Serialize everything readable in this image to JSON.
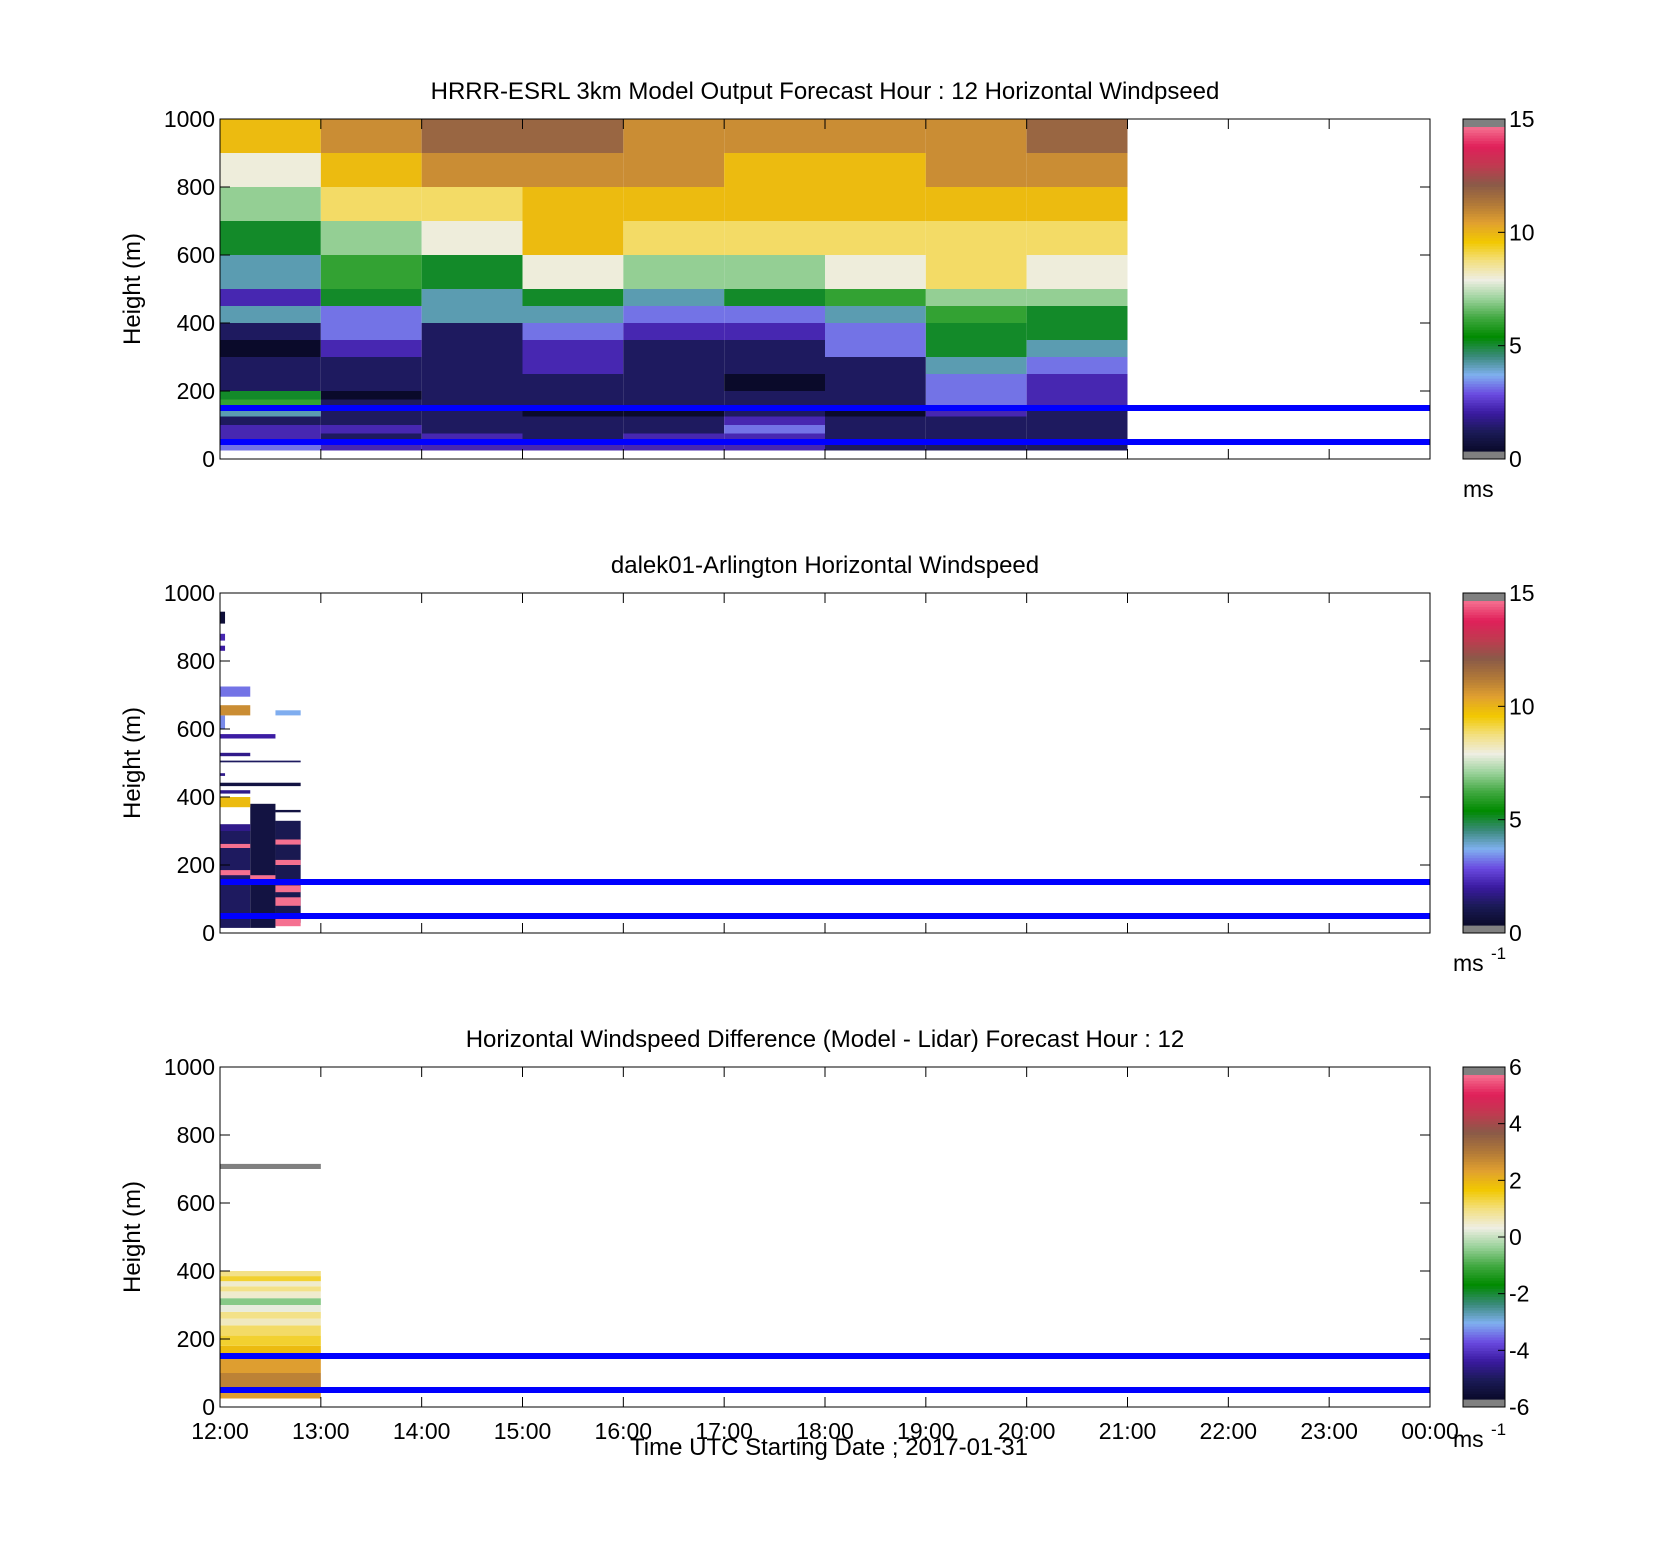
{
  "figure": {
    "xlabel": "Time UTC  Starting Date ; 2017-01-31",
    "x_ticks": [
      "12:00",
      "13:00",
      "14:00",
      "15:00",
      "16:00",
      "17:00",
      "18:00",
      "19:00",
      "20:00",
      "21:00",
      "22:00",
      "23:00",
      "00:00"
    ]
  },
  "chart_data": [
    {
      "type": "heatmap",
      "title": "HRRR-ESRL 3km Model Output   Forecast Hour : 12 Horizontal Windpseed",
      "ylabel": "Height (m)",
      "ylim": [
        0,
        1000
      ],
      "y_ticks": [
        "0",
        "200",
        "400",
        "600",
        "800",
        "1000"
      ],
      "colorbar": {
        "min": 0,
        "max": 15,
        "ticks": [
          "0",
          "5",
          "10",
          "15"
        ],
        "unit": "ms",
        "unit_sup": ""
      },
      "reference_lines_m": [
        50,
        150
      ],
      "reference_line_color": "#0000ff",
      "x_hours": [
        12,
        13,
        14,
        15,
        16,
        17,
        18,
        19,
        20
      ],
      "level_bounds_m": [
        0,
        25,
        50,
        75,
        100,
        125,
        150,
        175,
        200,
        250,
        300,
        350,
        400,
        450,
        500,
        600,
        700,
        800,
        900,
        1000
      ],
      "columns": [
        [
          0,
          3,
          2,
          2,
          1,
          4,
          6,
          5,
          1,
          1,
          0,
          1,
          4,
          2,
          4,
          5,
          7,
          8,
          10
        ],
        [
          0,
          2,
          1,
          2,
          1,
          1,
          1,
          0,
          1,
          1,
          2,
          3,
          3,
          5,
          6,
          7,
          9,
          10,
          11
        ],
        [
          0,
          2,
          2,
          1,
          1,
          1,
          1,
          1,
          1,
          1,
          1,
          1,
          4,
          4,
          5,
          8,
          9,
          11,
          12
        ],
        [
          0,
          2,
          1,
          1,
          1,
          0,
          1,
          1,
          1,
          2,
          2,
          3,
          4,
          5,
          8,
          10,
          10,
          11,
          12
        ],
        [
          0,
          2,
          2,
          1,
          1,
          0,
          1,
          1,
          1,
          1,
          1,
          2,
          3,
          4,
          7,
          9,
          10,
          11,
          11
        ],
        [
          0,
          2,
          2,
          3,
          2,
          1,
          1,
          1,
          0,
          1,
          1,
          2,
          3,
          5,
          7,
          9,
          10,
          10,
          11
        ],
        [
          0,
          1,
          1,
          1,
          1,
          0,
          1,
          1,
          1,
          1,
          3,
          3,
          4,
          6,
          8,
          9,
          10,
          10,
          11
        ],
        [
          0,
          1,
          1,
          1,
          1,
          2,
          3,
          3,
          3,
          4,
          5,
          5,
          6,
          7,
          9,
          9,
          10,
          11,
          11
        ],
        [
          0,
          1,
          1,
          1,
          1,
          1,
          2,
          2,
          2,
          3,
          4,
          5,
          5,
          7,
          8,
          9,
          10,
          11,
          12
        ]
      ],
      "missing_level_index": 0
    },
    {
      "type": "heatmap",
      "title": "dalek01-Arlington  Horizontal Windspeed",
      "ylabel": "Height (m)",
      "ylim": [
        0,
        1000
      ],
      "y_ticks": [
        "0",
        "200",
        "400",
        "600",
        "800",
        "1000"
      ],
      "colorbar": {
        "min": 0,
        "max": 15,
        "ticks": [
          "0",
          "5",
          "10",
          "15"
        ],
        "unit": "ms",
        "unit_sup": "-1"
      },
      "reference_lines_m": [
        50,
        150
      ],
      "reference_line_color": "#0000ff",
      "cells": [
        {
          "x0": 12.0,
          "x1": 12.3,
          "y0": 15,
          "y1": 300,
          "v": 1.0
        },
        {
          "x0": 12.3,
          "x1": 12.55,
          "y0": 15,
          "y1": 380,
          "v": 0.5
        },
        {
          "x0": 12.55,
          "x1": 12.8,
          "y0": 30,
          "y1": 330,
          "v": 0.8
        },
        {
          "x0": 12.0,
          "x1": 12.3,
          "y0": 170,
          "y1": 185,
          "v": 15
        },
        {
          "x0": 12.0,
          "x1": 12.3,
          "y0": 250,
          "y1": 262,
          "v": 15
        },
        {
          "x0": 12.3,
          "x1": 12.55,
          "y0": 150,
          "y1": 170,
          "v": 15
        },
        {
          "x0": 12.55,
          "x1": 12.8,
          "y0": 80,
          "y1": 105,
          "v": 15
        },
        {
          "x0": 12.55,
          "x1": 12.8,
          "y0": 20,
          "y1": 45,
          "v": 15
        },
        {
          "x0": 12.55,
          "x1": 12.8,
          "y0": 120,
          "y1": 140,
          "v": 15
        },
        {
          "x0": 12.55,
          "x1": 12.8,
          "y0": 200,
          "y1": 215,
          "v": 15
        },
        {
          "x0": 12.55,
          "x1": 12.8,
          "y0": 260,
          "y1": 275,
          "v": 15
        },
        {
          "x0": 12.0,
          "x1": 12.3,
          "y0": 370,
          "y1": 400,
          "v": 10
        },
        {
          "x0": 12.0,
          "x1": 12.3,
          "y0": 300,
          "y1": 320,
          "v": 1.5
        },
        {
          "x0": 12.0,
          "x1": 12.8,
          "y0": 432,
          "y1": 442,
          "v": 0.5
        },
        {
          "x0": 12.0,
          "x1": 12.3,
          "y0": 410,
          "y1": 420,
          "v": 1.5
        },
        {
          "x0": 12.55,
          "x1": 12.8,
          "y0": 355,
          "y1": 362,
          "v": 0.5
        },
        {
          "x0": 12.0,
          "x1": 12.8,
          "y0": 502,
          "y1": 507,
          "v": 1.0
        },
        {
          "x0": 12.0,
          "x1": 12.55,
          "y0": 572,
          "y1": 585,
          "v": 1.8
        },
        {
          "x0": 12.0,
          "x1": 12.3,
          "y0": 520,
          "y1": 530,
          "v": 1.5
        },
        {
          "x0": 12.0,
          "x1": 12.05,
          "y0": 462,
          "y1": 470,
          "v": 1.5
        },
        {
          "x0": 12.0,
          "x1": 12.05,
          "y0": 600,
          "y1": 640,
          "v": 3.2
        },
        {
          "x0": 12.0,
          "x1": 12.3,
          "y0": 695,
          "y1": 725,
          "v": 3.0
        },
        {
          "x0": 12.0,
          "x1": 12.3,
          "y0": 640,
          "y1": 670,
          "v": 11
        },
        {
          "x0": 12.55,
          "x1": 12.8,
          "y0": 640,
          "y1": 655,
          "v": 3.5
        },
        {
          "x0": 12.0,
          "x1": 12.05,
          "y0": 860,
          "y1": 880,
          "v": 2.0
        },
        {
          "x0": 12.0,
          "x1": 12.05,
          "y0": 910,
          "y1": 945,
          "v": 0.3
        },
        {
          "x0": 12.0,
          "x1": 12.05,
          "y0": 830,
          "y1": 845,
          "v": 1.8
        }
      ]
    },
    {
      "type": "heatmap",
      "title": "Horizontal Windspeed Difference (Model - Lidar) Forecast Hour : 12",
      "ylabel": "Height (m)",
      "ylim": [
        0,
        1000
      ],
      "y_ticks": [
        "0",
        "200",
        "400",
        "600",
        "800",
        "1000"
      ],
      "colorbar": {
        "min": -6,
        "max": 6,
        "ticks": [
          "-6",
          "-4",
          "-2",
          "0",
          "2",
          "4",
          "6"
        ],
        "unit": "ms",
        "unit_sup": "-1"
      },
      "reference_lines_m": [
        50,
        150
      ],
      "reference_line_color": "#0000ff",
      "cells": [
        {
          "x0": 12.0,
          "x1": 13.0,
          "y0": 700,
          "y1": 715,
          "v": 6.5
        },
        {
          "x0": 12.0,
          "x1": 13.0,
          "y0": 25,
          "y1": 50,
          "v": 2.5
        },
        {
          "x0": 12.0,
          "x1": 13.0,
          "y0": 50,
          "y1": 100,
          "v": 3.0
        },
        {
          "x0": 12.0,
          "x1": 13.0,
          "y0": 100,
          "y1": 150,
          "v": 2.5
        },
        {
          "x0": 12.0,
          "x1": 13.0,
          "y0": 150,
          "y1": 180,
          "v": 2.0
        },
        {
          "x0": 12.0,
          "x1": 13.0,
          "y0": 180,
          "y1": 210,
          "v": 1.5
        },
        {
          "x0": 12.0,
          "x1": 13.0,
          "y0": 210,
          "y1": 240,
          "v": 1.2
        },
        {
          "x0": 12.0,
          "x1": 13.0,
          "y0": 240,
          "y1": 260,
          "v": 0.6
        },
        {
          "x0": 12.0,
          "x1": 13.0,
          "y0": 260,
          "y1": 280,
          "v": 1.0
        },
        {
          "x0": 12.0,
          "x1": 13.0,
          "y0": 280,
          "y1": 300,
          "v": 0.3
        },
        {
          "x0": 12.0,
          "x1": 13.0,
          "y0": 300,
          "y1": 320,
          "v": -0.5
        },
        {
          "x0": 12.0,
          "x1": 13.0,
          "y0": 320,
          "y1": 340,
          "v": 0.5
        },
        {
          "x0": 12.0,
          "x1": 13.0,
          "y0": 340,
          "y1": 355,
          "v": 1.0
        },
        {
          "x0": 12.0,
          "x1": 13.0,
          "y0": 355,
          "y1": 370,
          "v": 0.5
        },
        {
          "x0": 12.0,
          "x1": 13.0,
          "y0": 370,
          "y1": 385,
          "v": 1.5
        },
        {
          "x0": 12.0,
          "x1": 13.0,
          "y0": 385,
          "y1": 400,
          "v": 1.0
        }
      ]
    }
  ],
  "colormap": {
    "stops": [
      "#0a0a2a",
      "#1a1a55",
      "#3a1aa0",
      "#6a4ae0",
      "#80b0f0",
      "#3a8a7a",
      "#008a00",
      "#40a840",
      "#9ad29a",
      "#eeeee2",
      "#f3e080",
      "#f2c800",
      "#e0a030",
      "#b07838",
      "#8a5a48",
      "#c03a50",
      "#e0205a",
      "#f57090"
    ],
    "out_of_range": "#808080",
    "reference_line": "#0000ff"
  }
}
